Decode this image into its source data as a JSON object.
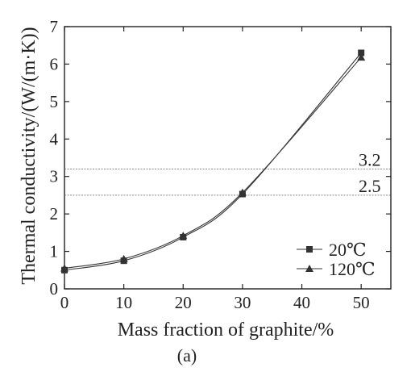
{
  "chart_data": {
    "type": "line",
    "title": "",
    "xlabel": "Mass fraction of graphite/%",
    "ylabel": "Thermal conductivity/(W/(m·K))",
    "caption": "(a)",
    "xlim": [
      0,
      55
    ],
    "ylim": [
      0,
      7
    ],
    "x_ticks": [
      0,
      10,
      20,
      30,
      40,
      50
    ],
    "y_ticks": [
      0,
      1,
      2,
      3,
      4,
      5,
      6,
      7
    ],
    "grid": false,
    "legend_position": "bottom-right",
    "series": [
      {
        "name": "20℃",
        "marker": "square",
        "x": [
          0,
          10,
          20,
          30,
          50
        ],
        "y": [
          0.5,
          0.75,
          1.38,
          2.53,
          6.3
        ]
      },
      {
        "name": "120℃",
        "marker": "triangle",
        "x": [
          0,
          10,
          20,
          30,
          50
        ],
        "y": [
          0.55,
          0.8,
          1.42,
          2.57,
          6.18
        ]
      }
    ],
    "reference_lines": [
      {
        "y": 3.2,
        "label": "3.2"
      },
      {
        "y": 2.5,
        "label": "2.5"
      }
    ],
    "colors": {
      "line": "#333333",
      "ref_line": "#777777"
    }
  }
}
